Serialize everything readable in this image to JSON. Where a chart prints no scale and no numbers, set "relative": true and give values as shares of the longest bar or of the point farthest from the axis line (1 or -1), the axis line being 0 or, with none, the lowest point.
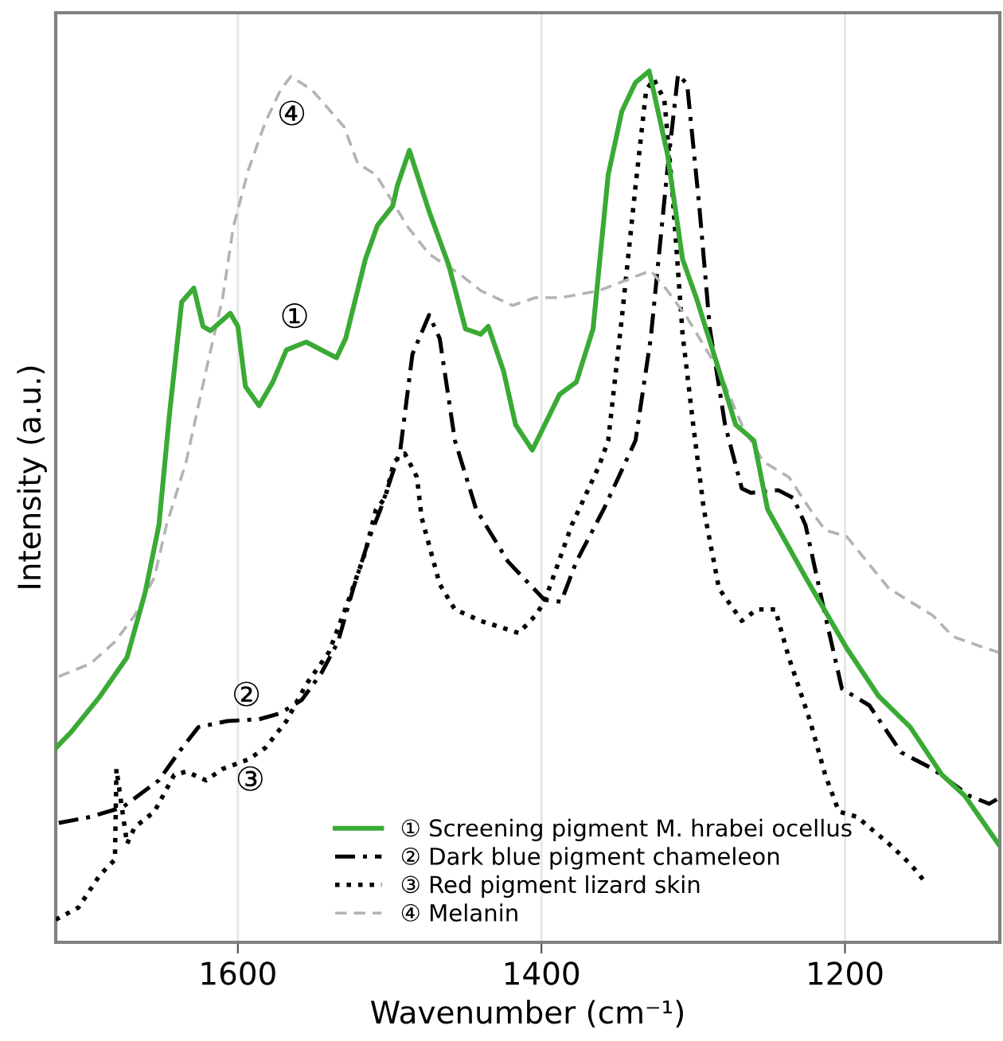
{
  "chart_data": {
    "type": "line",
    "relative": true,
    "xlabel": "Wavenumber (cm⁻¹)",
    "ylabel": "Intensity (a.u.)",
    "xlim": [
      1720,
      1098
    ],
    "xticks": [
      1600,
      1400,
      1200
    ],
    "grid": "x",
    "legend": "bottom",
    "tick_labels": "x",
    "series": [
      {
        "name": "① Screening pigment M. hrabei ocellus",
        "color": "#3aaa35",
        "line_style": "solid",
        "x": [
          1720,
          1710,
          1691,
          1673,
          1661,
          1652,
          1645,
          1637,
          1629,
          1623,
          1618,
          1605,
          1600,
          1595,
          1586,
          1577,
          1568,
          1555,
          1535,
          1529,
          1516,
          1508,
          1498,
          1495,
          1487,
          1474,
          1461,
          1450,
          1440,
          1435,
          1425,
          1417,
          1406,
          1388,
          1377,
          1366,
          1356,
          1347,
          1338,
          1329,
          1317,
          1307,
          1298,
          1284,
          1272,
          1260,
          1251,
          1226,
          1199,
          1178,
          1157,
          1136,
          1121,
          1099
        ],
        "values": [
          0.223,
          0.241,
          0.282,
          0.327,
          0.402,
          0.479,
          0.607,
          0.735,
          0.751,
          0.707,
          0.702,
          0.722,
          0.707,
          0.638,
          0.616,
          0.643,
          0.68,
          0.689,
          0.671,
          0.693,
          0.784,
          0.823,
          0.845,
          0.868,
          0.909,
          0.839,
          0.777,
          0.704,
          0.698,
          0.707,
          0.656,
          0.594,
          0.565,
          0.629,
          0.643,
          0.704,
          0.881,
          0.954,
          0.987,
          1.0,
          0.905,
          0.784,
          0.74,
          0.662,
          0.594,
          0.576,
          0.497,
          0.419,
          0.338,
          0.283,
          0.247,
          0.192,
          0.168,
          0.113
        ]
      },
      {
        "name": "② Dark blue pigment chameleon",
        "color": "#000000",
        "line_style": "dashdot",
        "x": [
          1718,
          1697,
          1676,
          1652,
          1639,
          1626,
          1607,
          1586,
          1572,
          1558,
          1545,
          1534,
          1524,
          1513,
          1506,
          1493,
          1485,
          1474,
          1467,
          1457,
          1443,
          1422,
          1398,
          1387,
          1377,
          1359,
          1338,
          1328,
          1317,
          1310,
          1304,
          1296,
          1289,
          1279,
          1268,
          1262,
          1244,
          1234,
          1226,
          1213,
          1202,
          1184,
          1163,
          1142,
          1118,
          1105,
          1099
        ],
        "values": [
          0.137,
          0.144,
          0.155,
          0.186,
          0.218,
          0.247,
          0.254,
          0.256,
          0.263,
          0.278,
          0.309,
          0.345,
          0.406,
          0.466,
          0.497,
          0.565,
          0.675,
          0.72,
          0.693,
          0.576,
          0.497,
          0.437,
          0.393,
          0.391,
          0.437,
          0.497,
          0.576,
          0.693,
          0.887,
          0.996,
          0.985,
          0.845,
          0.704,
          0.594,
          0.521,
          0.516,
          0.519,
          0.51,
          0.479,
          0.375,
          0.291,
          0.272,
          0.218,
          0.199,
          0.168,
          0.159,
          0.165
        ]
      },
      {
        "name": "③ Red pigment lizard skin",
        "color": "#000000",
        "line_style": "dotted",
        "x": [
          1720,
          1705,
          1691,
          1681,
          1680,
          1673,
          1668,
          1655,
          1642,
          1634,
          1621,
          1610,
          1593,
          1582,
          1568,
          1555,
          1540,
          1527,
          1516,
          1509,
          1503,
          1497,
          1490,
          1482,
          1479,
          1467,
          1457,
          1440,
          1415,
          1404,
          1398,
          1380,
          1362,
          1356,
          1347,
          1338,
          1331,
          1326,
          1319,
          1314,
          1307,
          1300,
          1293,
          1283,
          1268,
          1258,
          1246,
          1237,
          1223,
          1213,
          1204,
          1192,
          1171,
          1157,
          1148
        ],
        "values": [
          0.026,
          0.04,
          0.077,
          0.095,
          0.199,
          0.113,
          0.132,
          0.15,
          0.192,
          0.196,
          0.186,
          0.199,
          0.21,
          0.223,
          0.254,
          0.296,
          0.333,
          0.393,
          0.448,
          0.497,
          0.51,
          0.552,
          0.561,
          0.534,
          0.488,
          0.411,
          0.382,
          0.369,
          0.355,
          0.375,
          0.391,
          0.479,
          0.547,
          0.576,
          0.717,
          0.868,
          0.978,
          0.991,
          0.967,
          0.868,
          0.698,
          0.594,
          0.497,
          0.406,
          0.369,
          0.382,
          0.382,
          0.327,
          0.254,
          0.192,
          0.15,
          0.144,
          0.113,
          0.09,
          0.071
        ]
      },
      {
        "name": "④ Melanin",
        "color": "#b3b3b3",
        "line_style": "dashed",
        "x": [
          1718,
          1697,
          1681,
          1668,
          1655,
          1647,
          1634,
          1621,
          1610,
          1603,
          1593,
          1582,
          1572,
          1565,
          1551,
          1530,
          1521,
          1509,
          1488,
          1474,
          1453,
          1440,
          1419,
          1404,
          1387,
          1362,
          1328,
          1317,
          1304,
          1283,
          1268,
          1254,
          1237,
          1223,
          1213,
          1199,
          1171,
          1142,
          1129,
          1108,
          1099
        ],
        "values": [
          0.305,
          0.32,
          0.345,
          0.375,
          0.419,
          0.479,
          0.552,
          0.656,
          0.74,
          0.821,
          0.887,
          0.941,
          0.978,
          0.994,
          0.978,
          0.936,
          0.894,
          0.881,
          0.821,
          0.79,
          0.766,
          0.748,
          0.731,
          0.74,
          0.74,
          0.748,
          0.771,
          0.748,
          0.717,
          0.656,
          0.594,
          0.552,
          0.534,
          0.497,
          0.473,
          0.466,
          0.406,
          0.375,
          0.351,
          0.338,
          0.333
        ]
      }
    ],
    "annotations": [
      "①",
      "②",
      "③",
      "④"
    ]
  }
}
